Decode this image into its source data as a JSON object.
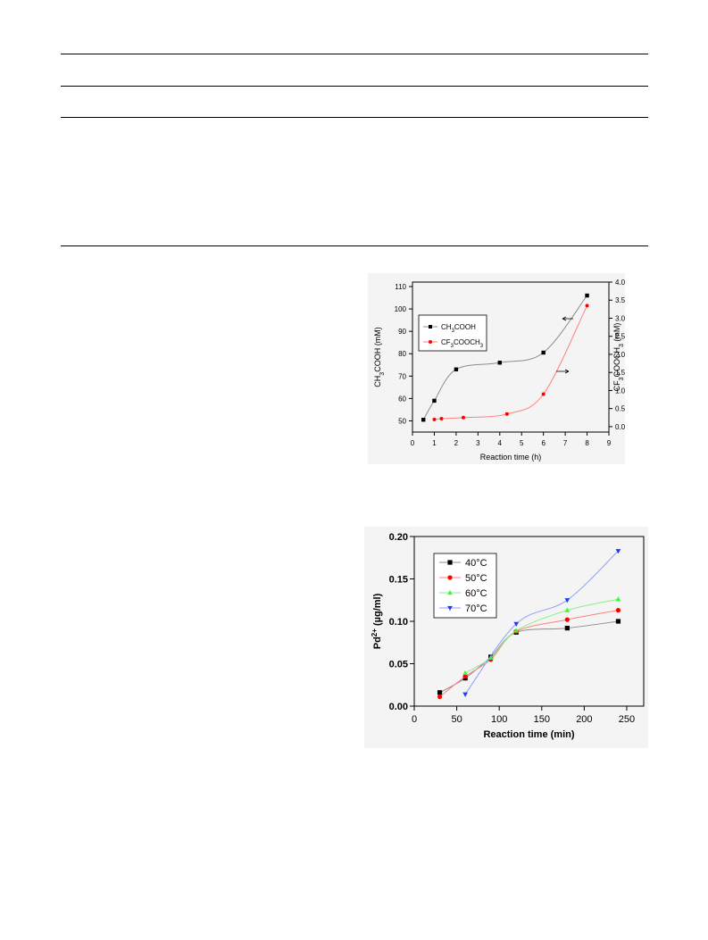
{
  "colors": {
    "black": "#000000",
    "red": "#ff0000",
    "green": "#33ff33",
    "blue": "#1a3cff",
    "gray_line": "#8c8c8c"
  },
  "chart_data": [
    {
      "type": "scatter",
      "xlabel": "Reaction time (h)",
      "ylabel_left": {
        "base": "CH",
        "sub": "3",
        "rest": "COOH (mM)"
      },
      "ylabel_right": {
        "base": "CF",
        "sub": "3",
        "rest": "COOCH",
        "sub2": "3",
        "tail": " (mM)"
      },
      "xlim": [
        0,
        9
      ],
      "ylim_left": [
        45,
        112
      ],
      "ylim_right": [
        -0.15,
        4.0
      ],
      "x_ticks": [
        "0",
        "1",
        "2",
        "3",
        "4",
        "5",
        "6",
        "7",
        "8",
        "9"
      ],
      "y_ticks_left": [
        "50",
        "60",
        "70",
        "80",
        "90",
        "100",
        "110"
      ],
      "y_ticks_right": [
        "0.0",
        "0.5",
        "1.0",
        "1.5",
        "2.0",
        "2.5",
        "3.0",
        "3.5",
        "4.0"
      ],
      "legend_placement": "upper-left",
      "series": [
        {
          "name": {
            "base": "CH",
            "sub": "3",
            "rest": "COOH"
          },
          "axis": "left",
          "marker": "square",
          "color": "#000000",
          "x": [
            0.5,
            1,
            2,
            4,
            6,
            8
          ],
          "y": [
            50.5,
            59,
            73,
            76,
            80.5,
            106
          ]
        },
        {
          "name": {
            "base": "CF",
            "sub": "3",
            "rest": "COOCH",
            "sub2": "3"
          },
          "axis": "right",
          "marker": "circle",
          "color": "#ff0000",
          "x": [
            1,
            1.33,
            2.33,
            4.33,
            6,
            8
          ],
          "y": [
            0.2,
            0.22,
            0.25,
            0.35,
            0.9,
            3.35
          ]
        }
      ],
      "annotations": [
        "left-arrow near CH3COOH curve",
        "right-arrow near CF3COOCH3 curve"
      ]
    },
    {
      "type": "scatter",
      "xlabel": "Reaction time (min)",
      "ylabel": {
        "base": "Pd",
        "sup": "2+",
        "rest": " (µg/ml)"
      },
      "xlim": [
        0,
        270
      ],
      "ylim": [
        0,
        0.2
      ],
      "x_ticks": [
        "0",
        "50",
        "100",
        "150",
        "200",
        "250"
      ],
      "y_ticks": [
        "0.00",
        "0.05",
        "0.10",
        "0.15",
        "0.20"
      ],
      "legend_placement": "upper-left",
      "series": [
        {
          "name": "40°C",
          "marker": "square",
          "color": "#000000",
          "x": [
            30,
            60,
            90,
            120,
            180,
            240
          ],
          "y": [
            0.016,
            0.033,
            0.058,
            0.087,
            0.092,
            0.1
          ]
        },
        {
          "name": "50°C",
          "marker": "circle",
          "color": "#ff0000",
          "x": [
            30,
            60,
            90,
            120,
            180,
            240
          ],
          "y": [
            0.011,
            0.035,
            0.055,
            0.088,
            0.102,
            0.113
          ]
        },
        {
          "name": "60°C",
          "marker": "triangle-up",
          "color": "#33ff33",
          "x": [
            60,
            90,
            120,
            180,
            240
          ],
          "y": [
            0.039,
            0.057,
            0.089,
            0.113,
            0.126
          ]
        },
        {
          "name": "70°C",
          "marker": "triangle-down",
          "color": "#1a3cff",
          "x": [
            60,
            120,
            180,
            240
          ],
          "y": [
            0.014,
            0.097,
            0.125,
            0.183
          ]
        }
      ]
    }
  ]
}
